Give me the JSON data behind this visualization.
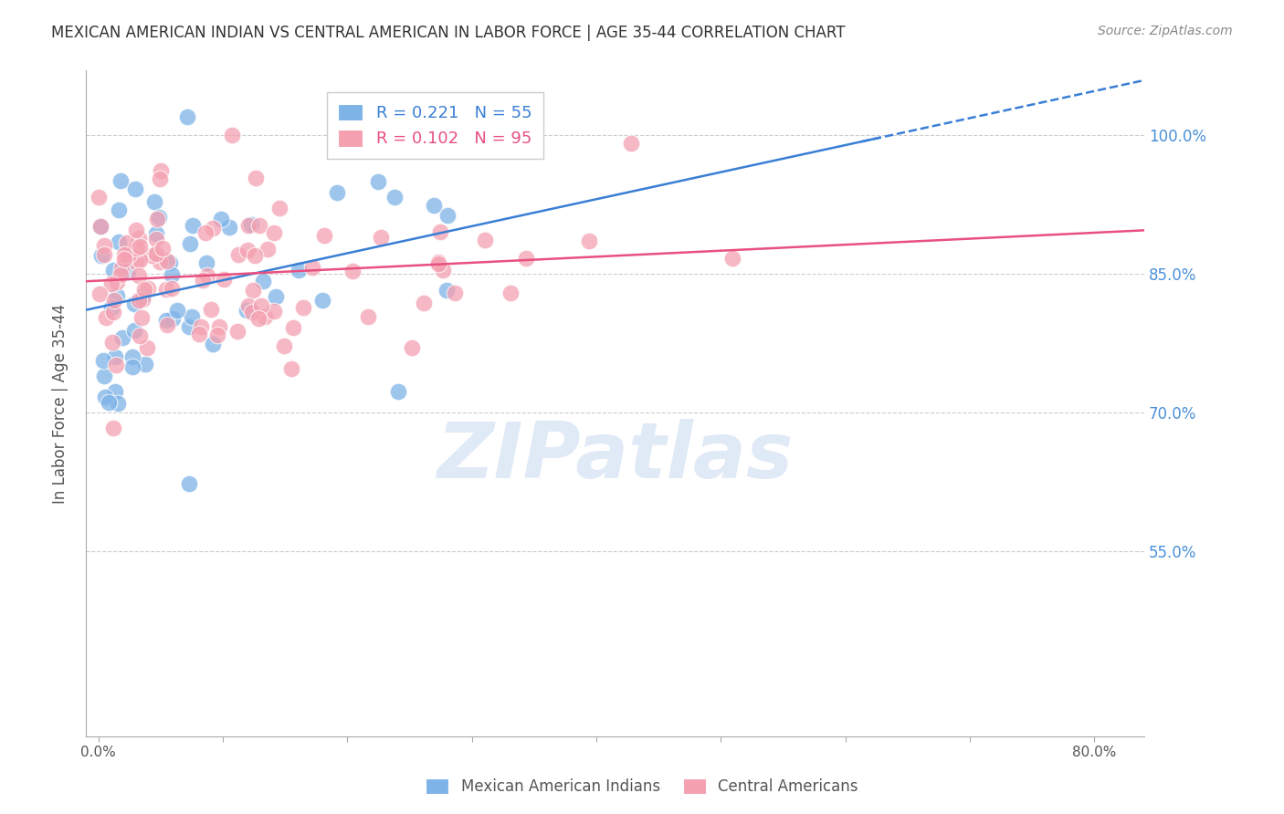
{
  "title": "MEXICAN AMERICAN INDIAN VS CENTRAL AMERICAN IN LABOR FORCE | AGE 35-44 CORRELATION CHART",
  "source": "Source: ZipAtlas.com",
  "ylabel": "In Labor Force | Age 35-44",
  "xlim": [
    -0.01,
    0.84
  ],
  "ylim": [
    0.35,
    1.07
  ],
  "xtick_vals": [
    0.0,
    0.1,
    0.2,
    0.3,
    0.4,
    0.5,
    0.6,
    0.7,
    0.8
  ],
  "xticklabels": [
    "0.0%",
    "",
    "",
    "",
    "",
    "",
    "",
    "",
    "80.0%"
  ],
  "ytick_values": [
    0.55,
    0.7,
    0.85,
    1.0
  ],
  "ytick_labels": [
    "55.0%",
    "70.0%",
    "85.0%",
    "100.0%"
  ],
  "R_blue": 0.221,
  "N_blue": 55,
  "R_pink": 0.102,
  "N_pink": 95,
  "blue_color": "#7EB3E8",
  "pink_color": "#F4A0B0",
  "blue_line_color": "#3A7FD5",
  "pink_line_color": "#E85080",
  "axis_label_color": "#4A90D9",
  "background_color": "#FFFFFF",
  "watermark": "ZIPatlas",
  "watermark_color": "#C8D8F0"
}
